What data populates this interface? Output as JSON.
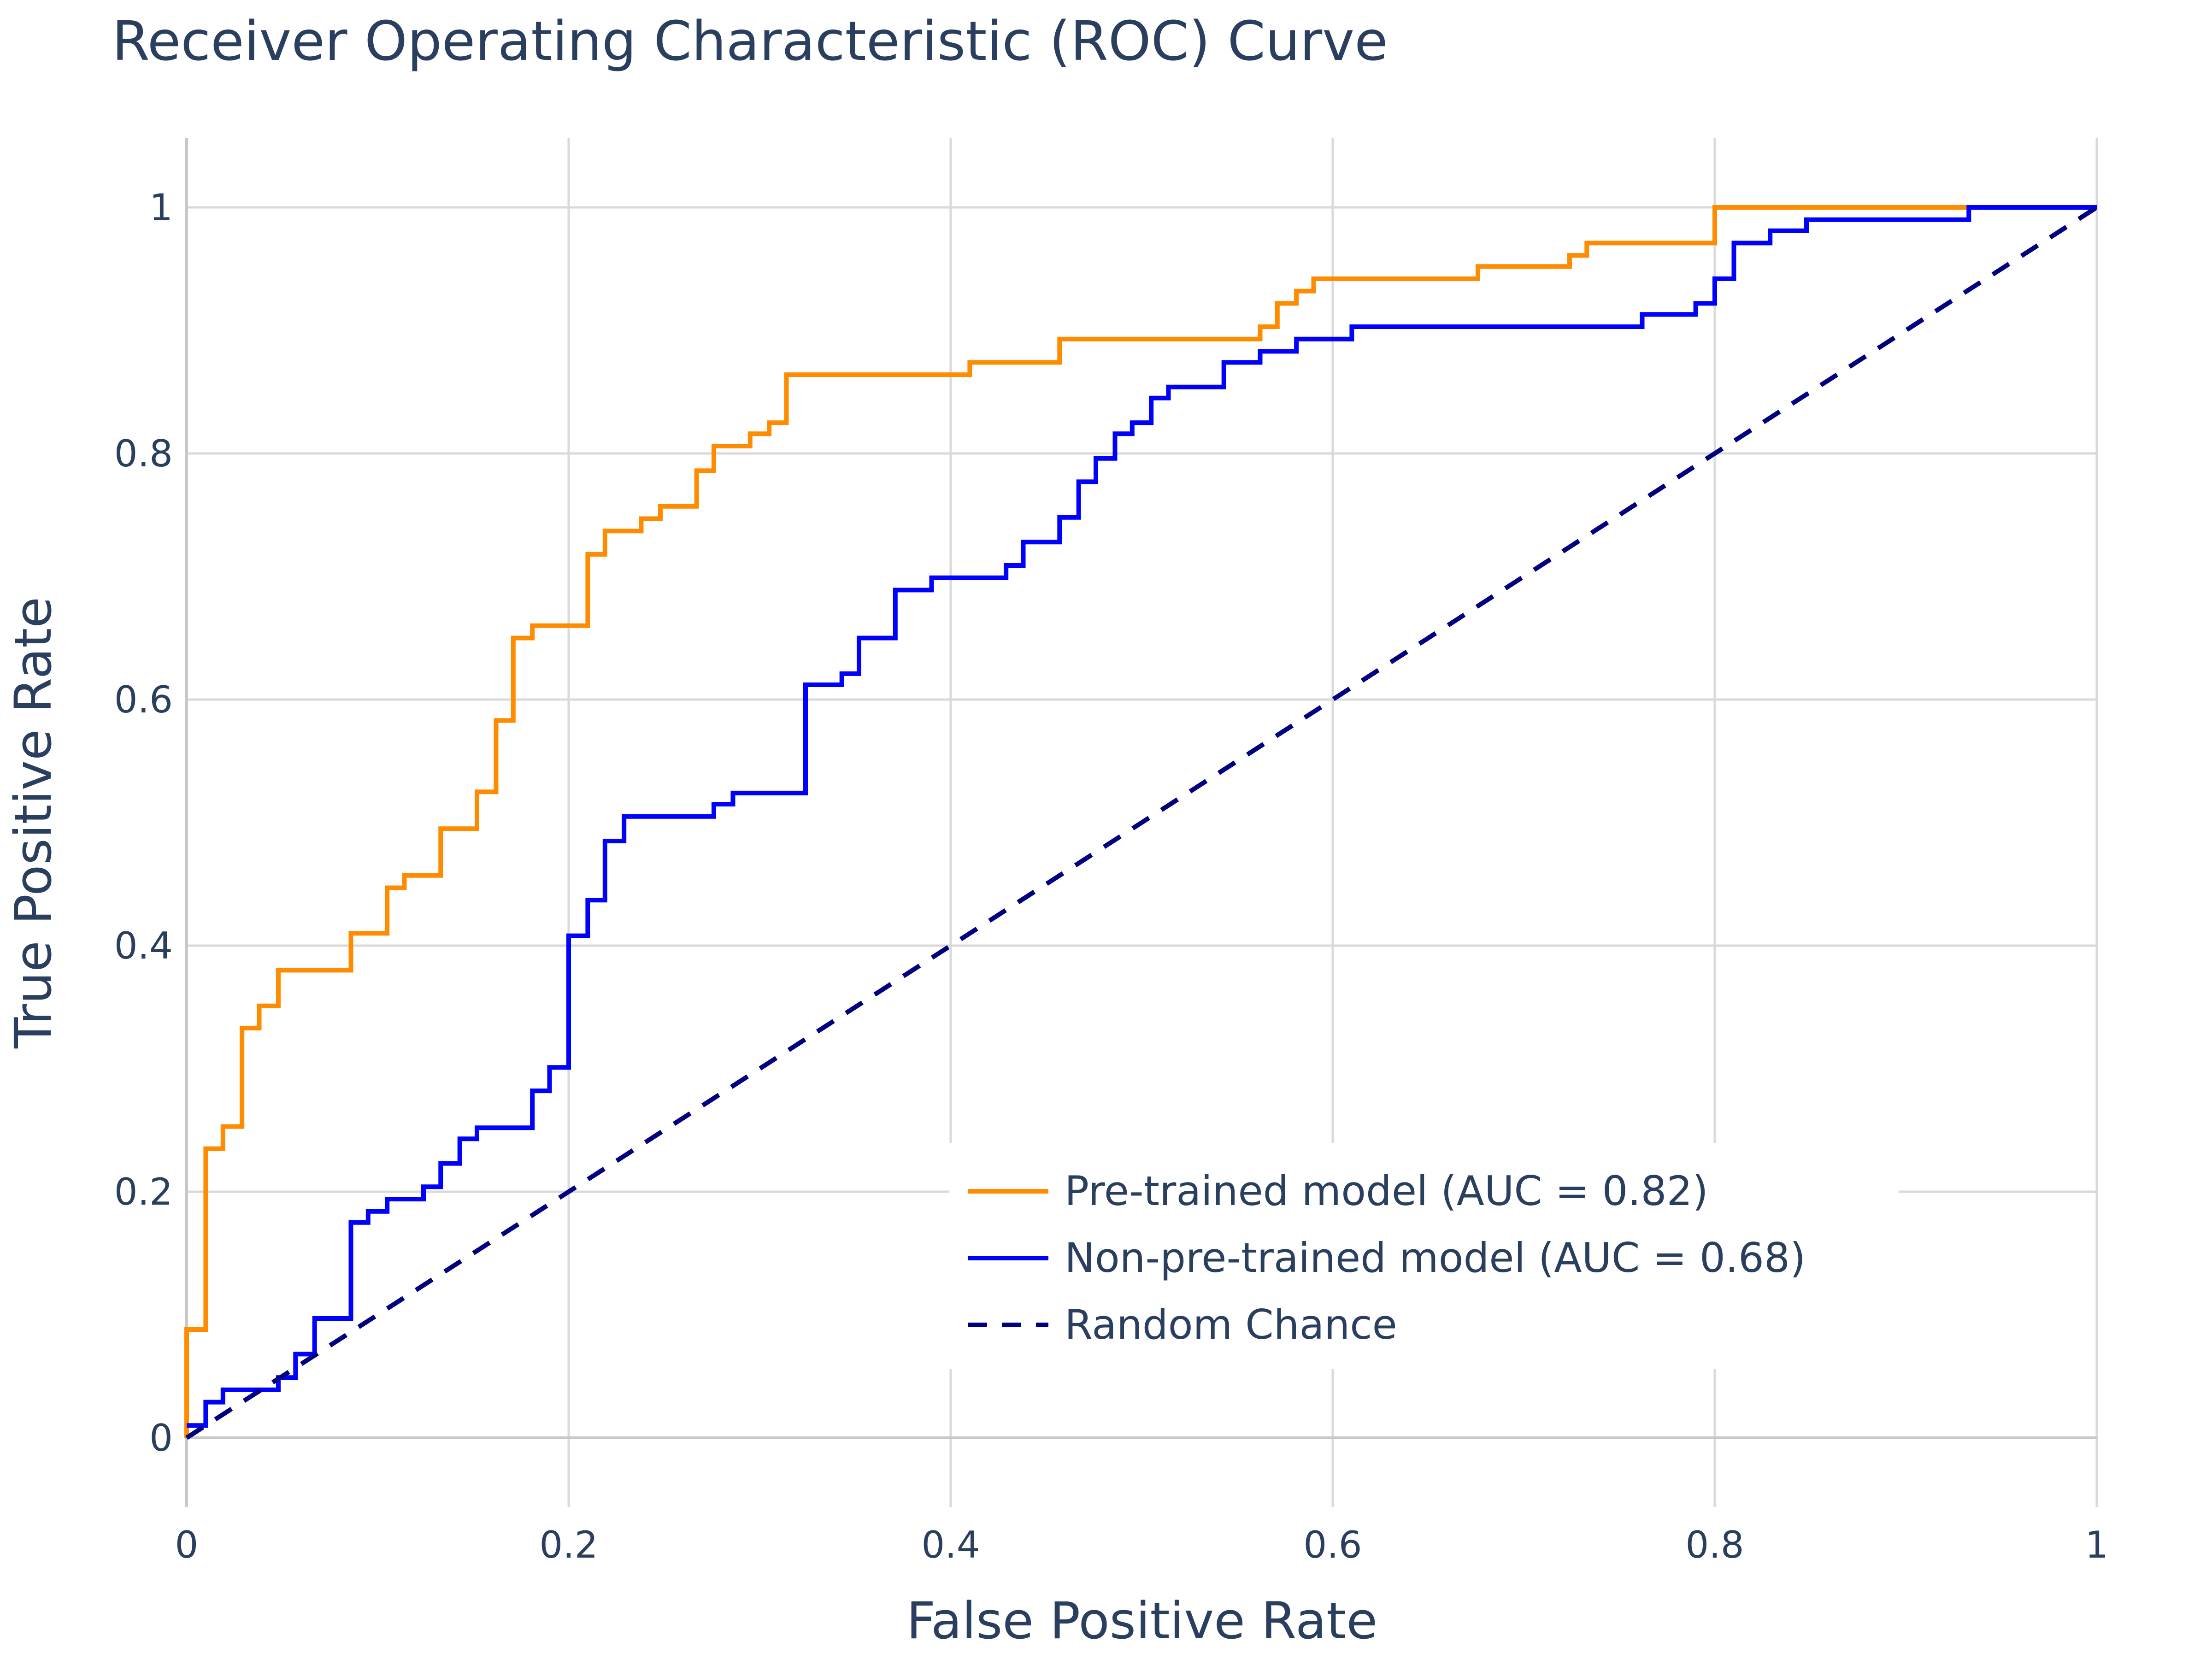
{
  "chart_data": {
    "type": "line",
    "title": "Receiver Operating Characteristic (ROC) Curve",
    "xlabel": "False Positive Rate",
    "ylabel": "True Positive Rate",
    "xlim": [
      0,
      1
    ],
    "ylim": [
      -0.055,
      1.055
    ],
    "grid": true,
    "legend_position": "bottom-right",
    "x_ticks": [
      {
        "value": 0,
        "label": "0"
      },
      {
        "value": 0.2,
        "label": "0.2"
      },
      {
        "value": 0.4,
        "label": "0.4"
      },
      {
        "value": 0.6,
        "label": "0.6"
      },
      {
        "value": 0.8,
        "label": "0.8"
      },
      {
        "value": 1,
        "label": "1"
      }
    ],
    "y_ticks": [
      {
        "value": 0,
        "label": "0"
      },
      {
        "value": 0.2,
        "label": "0.2"
      },
      {
        "value": 0.4,
        "label": "0.4"
      },
      {
        "value": 0.6,
        "label": "0.6"
      },
      {
        "value": 0.8,
        "label": "0.8"
      },
      {
        "value": 1,
        "label": "1"
      }
    ],
    "series": [
      {
        "name": "Pre-trained model (AUC = 0.82)",
        "color": "#ff8c00",
        "dash": "solid",
        "x": [
          0,
          0,
          0.01,
          0.01,
          0.019,
          0.019,
          0.029,
          0.029,
          0.038,
          0.038,
          0.048,
          0.048,
          0.086,
          0.086,
          0.105,
          0.105,
          0.114,
          0.114,
          0.133,
          0.133,
          0.152,
          0.152,
          0.162,
          0.162,
          0.171,
          0.171,
          0.181,
          0.181,
          0.21,
          0.21,
          0.219,
          0.219,
          0.238,
          0.238,
          0.248,
          0.248,
          0.267,
          0.267,
          0.276,
          0.276,
          0.295,
          0.295,
          0.305,
          0.305,
          0.314,
          0.314,
          0.41,
          0.41,
          0.457,
          0.457,
          0.562,
          0.562,
          0.571,
          0.571,
          0.581,
          0.581,
          0.59,
          0.59,
          0.676,
          0.676,
          0.724,
          0.724,
          0.733,
          0.733,
          0.8,
          0.8,
          0.933
        ],
        "y": [
          0,
          0.088,
          0.088,
          0.235,
          0.235,
          0.253,
          0.253,
          0.333,
          0.333,
          0.351,
          0.351,
          0.38,
          0.38,
          0.41,
          0.41,
          0.447,
          0.447,
          0.457,
          0.457,
          0.495,
          0.495,
          0.525,
          0.525,
          0.583,
          0.583,
          0.65,
          0.65,
          0.66,
          0.66,
          0.718,
          0.718,
          0.737,
          0.737,
          0.747,
          0.747,
          0.757,
          0.757,
          0.786,
          0.786,
          0.806,
          0.806,
          0.816,
          0.816,
          0.825,
          0.825,
          0.864,
          0.864,
          0.874,
          0.874,
          0.893,
          0.893,
          0.903,
          0.903,
          0.922,
          0.922,
          0.932,
          0.932,
          0.942,
          0.942,
          0.952,
          0.952,
          0.961,
          0.961,
          0.971,
          0.971,
          1.0,
          1.0
        ]
      },
      {
        "name": "Non-pre-trained model (AUC = 0.68)",
        "color": "#0000ff",
        "dash": "solid",
        "x": [
          0,
          0.01,
          0.01,
          0.019,
          0.019,
          0.048,
          0.048,
          0.057,
          0.057,
          0.067,
          0.067,
          0.086,
          0.086,
          0.095,
          0.095,
          0.105,
          0.105,
          0.124,
          0.124,
          0.133,
          0.133,
          0.143,
          0.143,
          0.152,
          0.152,
          0.181,
          0.181,
          0.19,
          0.19,
          0.2,
          0.2,
          0.21,
          0.21,
          0.219,
          0.219,
          0.229,
          0.229,
          0.276,
          0.276,
          0.286,
          0.286,
          0.324,
          0.324,
          0.343,
          0.343,
          0.352,
          0.352,
          0.371,
          0.371,
          0.39,
          0.39,
          0.429,
          0.429,
          0.438,
          0.438,
          0.457,
          0.457,
          0.467,
          0.467,
          0.476,
          0.476,
          0.486,
          0.486,
          0.495,
          0.495,
          0.505,
          0.505,
          0.514,
          0.514,
          0.543,
          0.543,
          0.562,
          0.562,
          0.581,
          0.581,
          0.61,
          0.61,
          0.762,
          0.762,
          0.79,
          0.79,
          0.8,
          0.8,
          0.81,
          0.81,
          0.829,
          0.829,
          0.848,
          0.848,
          0.933,
          0.933,
          1.0
        ],
        "y": [
          0.01,
          0.01,
          0.029,
          0.029,
          0.039,
          0.039,
          0.049,
          0.049,
          0.068,
          0.068,
          0.097,
          0.097,
          0.175,
          0.175,
          0.184,
          0.184,
          0.194,
          0.194,
          0.204,
          0.204,
          0.223,
          0.223,
          0.243,
          0.243,
          0.252,
          0.252,
          0.282,
          0.282,
          0.301,
          0.301,
          0.408,
          0.408,
          0.437,
          0.437,
          0.485,
          0.485,
          0.505,
          0.505,
          0.515,
          0.515,
          0.524,
          0.524,
          0.612,
          0.612,
          0.621,
          0.621,
          0.65,
          0.65,
          0.689,
          0.689,
          0.699,
          0.699,
          0.709,
          0.709,
          0.728,
          0.728,
          0.748,
          0.748,
          0.777,
          0.777,
          0.796,
          0.796,
          0.816,
          0.816,
          0.825,
          0.825,
          0.845,
          0.845,
          0.854,
          0.854,
          0.874,
          0.874,
          0.883,
          0.883,
          0.893,
          0.893,
          0.903,
          0.903,
          0.913,
          0.913,
          0.922,
          0.922,
          0.942,
          0.942,
          0.971,
          0.971,
          0.981,
          0.981,
          0.99,
          0.99,
          1.0,
          1.0
        ]
      },
      {
        "name": "Random Chance",
        "color": "#000080",
        "dash": "dash",
        "x": [
          0,
          1
        ],
        "y": [
          0,
          1
        ]
      }
    ]
  }
}
